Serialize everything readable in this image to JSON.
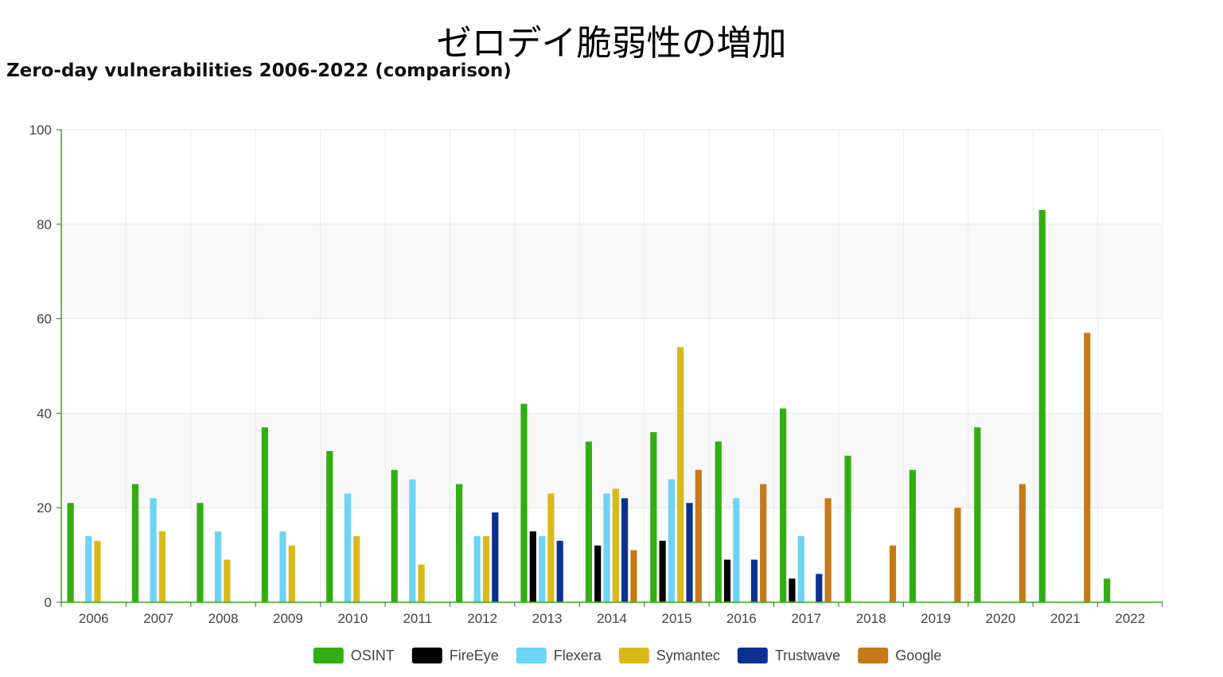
{
  "page": {
    "title": "ゼロデイ脆弱性の増加"
  },
  "chart_data": {
    "type": "bar",
    "title": "Zero-day vulnerabilities 2006-2022 (comparison)",
    "xlabel": "",
    "ylabel": "",
    "ylim": [
      0,
      100
    ],
    "yticks": [
      0,
      20,
      40,
      60,
      80,
      100
    ],
    "grid": true,
    "legend_position": "bottom",
    "categories": [
      "2006",
      "2007",
      "2008",
      "2009",
      "2010",
      "2011",
      "2012",
      "2013",
      "2014",
      "2015",
      "2016",
      "2017",
      "2018",
      "2019",
      "2020",
      "2021",
      "2022"
    ],
    "series": [
      {
        "name": "OSINT",
        "color": "#33AD14",
        "values": [
          21,
          25,
          21,
          37,
          32,
          28,
          25,
          42,
          34,
          36,
          34,
          41,
          31,
          28,
          37,
          83,
          5
        ]
      },
      {
        "name": "FireEye",
        "color": "#000000",
        "values": [
          null,
          null,
          null,
          null,
          null,
          null,
          null,
          15,
          12,
          13,
          9,
          5,
          null,
          null,
          null,
          null,
          null
        ]
      },
      {
        "name": "Flexera",
        "color": "#6DD4F5",
        "values": [
          14,
          22,
          15,
          15,
          23,
          26,
          14,
          14,
          23,
          26,
          22,
          14,
          null,
          null,
          null,
          null,
          null
        ]
      },
      {
        "name": "Symantec",
        "color": "#D9B91A",
        "values": [
          13,
          15,
          9,
          12,
          14,
          8,
          14,
          23,
          24,
          54,
          null,
          null,
          null,
          null,
          null,
          null,
          null
        ]
      },
      {
        "name": "Trustwave",
        "color": "#0D3090",
        "values": [
          null,
          null,
          null,
          null,
          null,
          null,
          19,
          13,
          22,
          21,
          9,
          6,
          null,
          null,
          null,
          null,
          null
        ]
      },
      {
        "name": "Google",
        "color": "#C47A1A",
        "values": [
          null,
          null,
          null,
          null,
          null,
          null,
          null,
          null,
          11,
          28,
          25,
          22,
          12,
          20,
          25,
          57,
          null
        ]
      }
    ]
  }
}
